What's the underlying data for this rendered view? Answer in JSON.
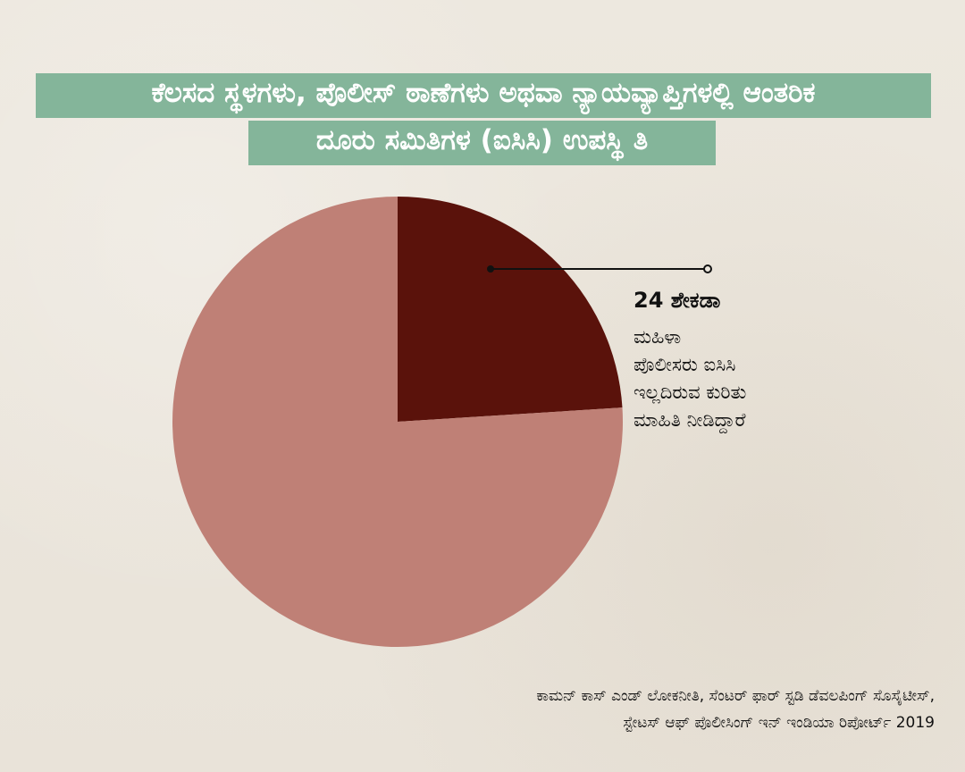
{
  "header": {
    "title_line_1": "ಕೆಲಸದ ಸ್ಥಳಗಳು, ಪೊಲೀಸ್ ಠಾಣೆಗಳು ಅಥವಾ ನ್ಯಾಯವ್ಯಾಪ್ತಿಗಳಲ್ಲಿ ಆಂತರಿಕ",
    "title_line_2": "ದೂರು ಸಮಿತಿಗಳ (ಐಸಿಸಿ) ಉಪಸ್ಥಿ ತಿ"
  },
  "callout": {
    "value": "24 ಶೇಕಡಾ",
    "text": " ಮಹಿಳಾ\nಪೊಲೀಸರು ಐಸಿಸಿ\nಇಲ್ಲದಿರುವ ಕುರಿತು\nಮಾಹಿತಿ ನೀಡಿದ್ದಾರೆ"
  },
  "source": {
    "line_1": "ಕಾಮನ್ ಕಾಸ್ ಎಂಡ್ ಲೋಕನೀತಿ, ಸೆಂಟರ್ ಫಾರ್ ಸ್ಟಡಿ ಡೆವಲಪಿಂಗ್ ಸೊಸೈಟೀಸ್,",
    "line_2": "ಸ್ಟೇಟಸ್ ಆಫ್ ಪೊಲೀಸಿಂಗ್ ಇನ್ ಇಂಡಿಯಾ ರಿಪೋರ್ಟ್ 2019"
  },
  "chart_data": {
    "type": "pie",
    "slices": [
      {
        "label": "24 ಶೇಕಡಾ",
        "value": 24,
        "color": "#5a120b"
      },
      {
        "label": "",
        "value": 76,
        "color": "#bf8076"
      }
    ],
    "title": "ಕೆಲಸದ ಸ್ಥಳಗಳು, ಪೊಲೀಸ್ ಠಾಣೆಗಳು ಅಥವಾ ನ್ಯಾಯವ್ಯಾಪ್ತಿಗಳಲ್ಲಿ ಆಂತರಿಕ ದೂರು ಸಮಿತಿಗಳ (ಐಸಿಸಿ) ಉಪಸ್ಥಿ ತಿ",
    "legend": "none"
  },
  "colors": {
    "background": "#ebe6dd",
    "title_band": "#84b59a",
    "title_text": "#ffffff",
    "highlight_slice": "#5a120b",
    "other_slice": "#bf8076"
  }
}
